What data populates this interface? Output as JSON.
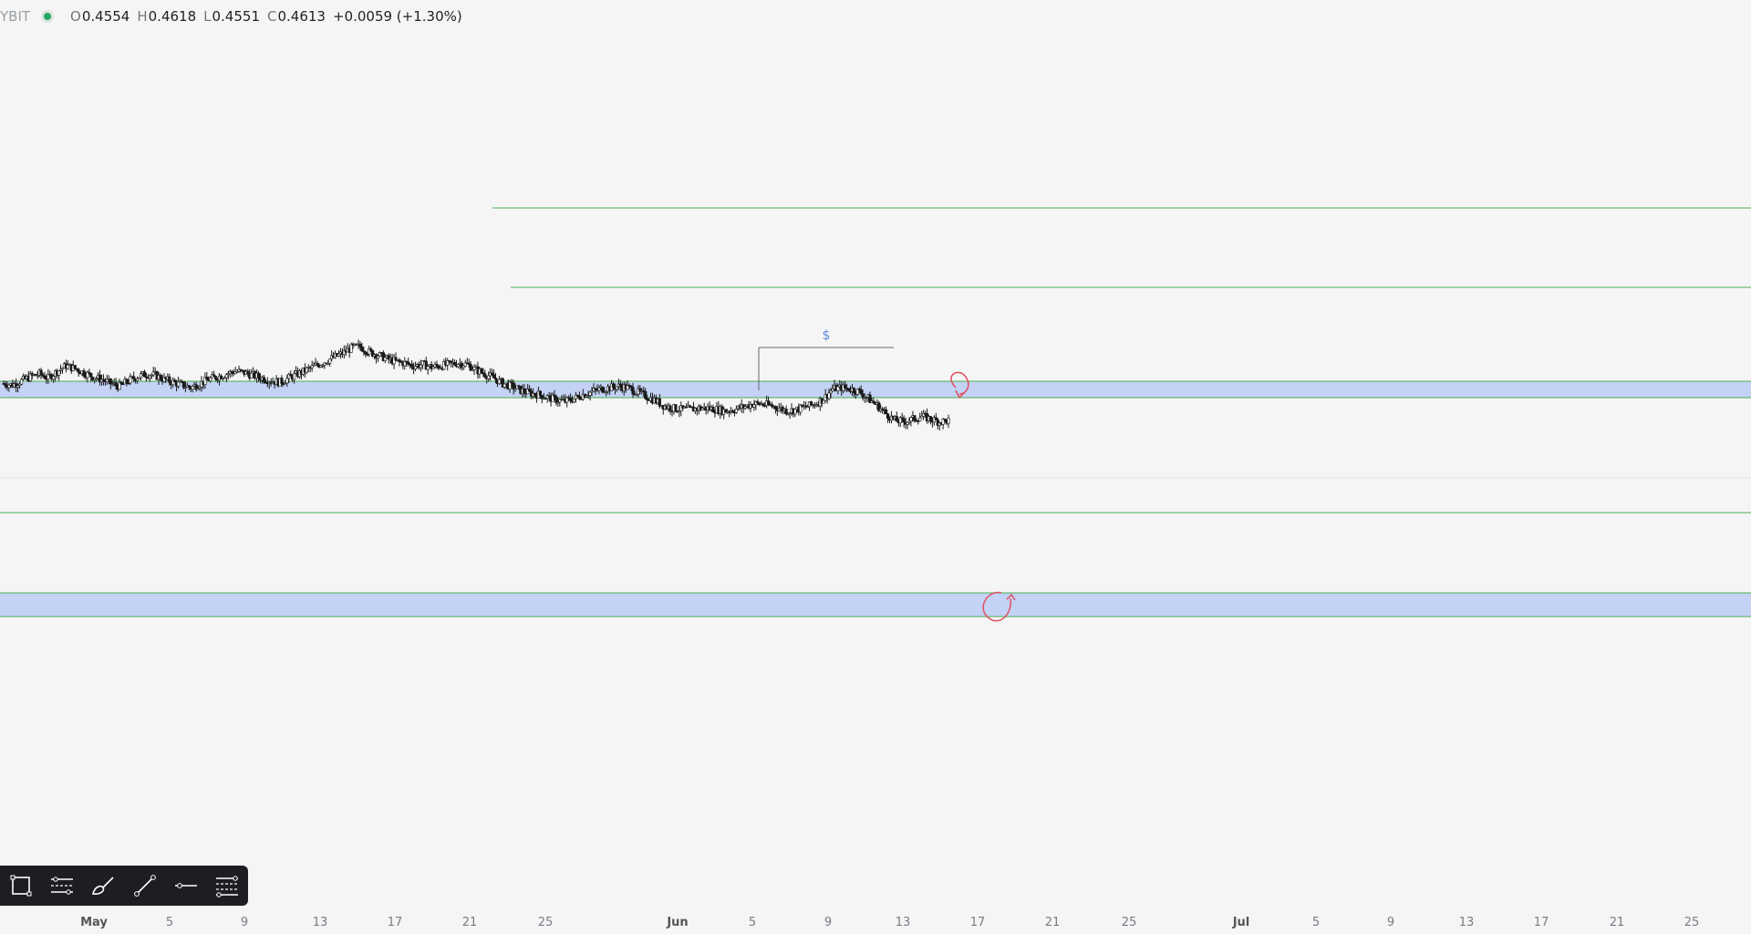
{
  "legend": {
    "symbol_fragment": "YBIT",
    "open_key": "O",
    "open": "0.4554",
    "high_key": "H",
    "high": "0.4618",
    "low_key": "L",
    "low": "0.4551",
    "close_key": "C",
    "close": "0.4613",
    "change": "+0.0059 (+1.30%)"
  },
  "annotations": {
    "dollar_label": "$"
  },
  "time_axis": {
    "labels": [
      "May",
      "5",
      "9",
      "13",
      "17",
      "21",
      "25",
      "Jun",
      "5",
      "9",
      "13",
      "17",
      "21",
      "25",
      "Jul",
      "5",
      "9",
      "13",
      "17",
      "21",
      "25"
    ],
    "major": [
      "May",
      "Jun",
      "Jul"
    ]
  },
  "toolbar": {
    "tools": [
      "rectangle-icon",
      "parallel-channel-icon",
      "brush-icon",
      "trend-line-icon",
      "horizontal-line-icon",
      "fib-icon"
    ]
  },
  "colors": {
    "background": "#f5f5f5",
    "candle": "#1a1a1a",
    "level_line": "#4caf50",
    "zone_fill": "#c3d2f5",
    "marker": "#e05060",
    "dollar": "#5b8bd8"
  },
  "chart_data": {
    "type": "candlestick",
    "price_range": [
      0.41,
      0.51
    ],
    "close_path": [
      0.463,
      0.462,
      0.465,
      0.468,
      0.47,
      0.467,
      0.472,
      0.476,
      0.474,
      0.471,
      0.468,
      0.466,
      0.463,
      0.461,
      0.465,
      0.468,
      0.47,
      0.469,
      0.466,
      0.464,
      0.462,
      0.46,
      0.463,
      0.466,
      0.468,
      0.47,
      0.472,
      0.471,
      0.469,
      0.467,
      0.465,
      0.464,
      0.467,
      0.47,
      0.473,
      0.476,
      0.479,
      0.482,
      0.485,
      0.489,
      0.49,
      0.486,
      0.484,
      0.481,
      0.479,
      0.478,
      0.476,
      0.477,
      0.475,
      0.476,
      0.477,
      0.478,
      0.477,
      0.473,
      0.47,
      0.467,
      0.463,
      0.461,
      0.458,
      0.456,
      0.455,
      0.453,
      0.451,
      0.45,
      0.452,
      0.455,
      0.457,
      0.459,
      0.46,
      0.461,
      0.46,
      0.457,
      0.454,
      0.451,
      0.447,
      0.445,
      0.444,
      0.444,
      0.445,
      0.445,
      0.444,
      0.443,
      0.444,
      0.446,
      0.448,
      0.448,
      0.447,
      0.445,
      0.443,
      0.444,
      0.446,
      0.448,
      0.452,
      0.459,
      0.46,
      0.459,
      0.457,
      0.452,
      0.447,
      0.441,
      0.436,
      0.435,
      0.437,
      0.439,
      0.437,
      0.435,
      0.436
    ]
  }
}
